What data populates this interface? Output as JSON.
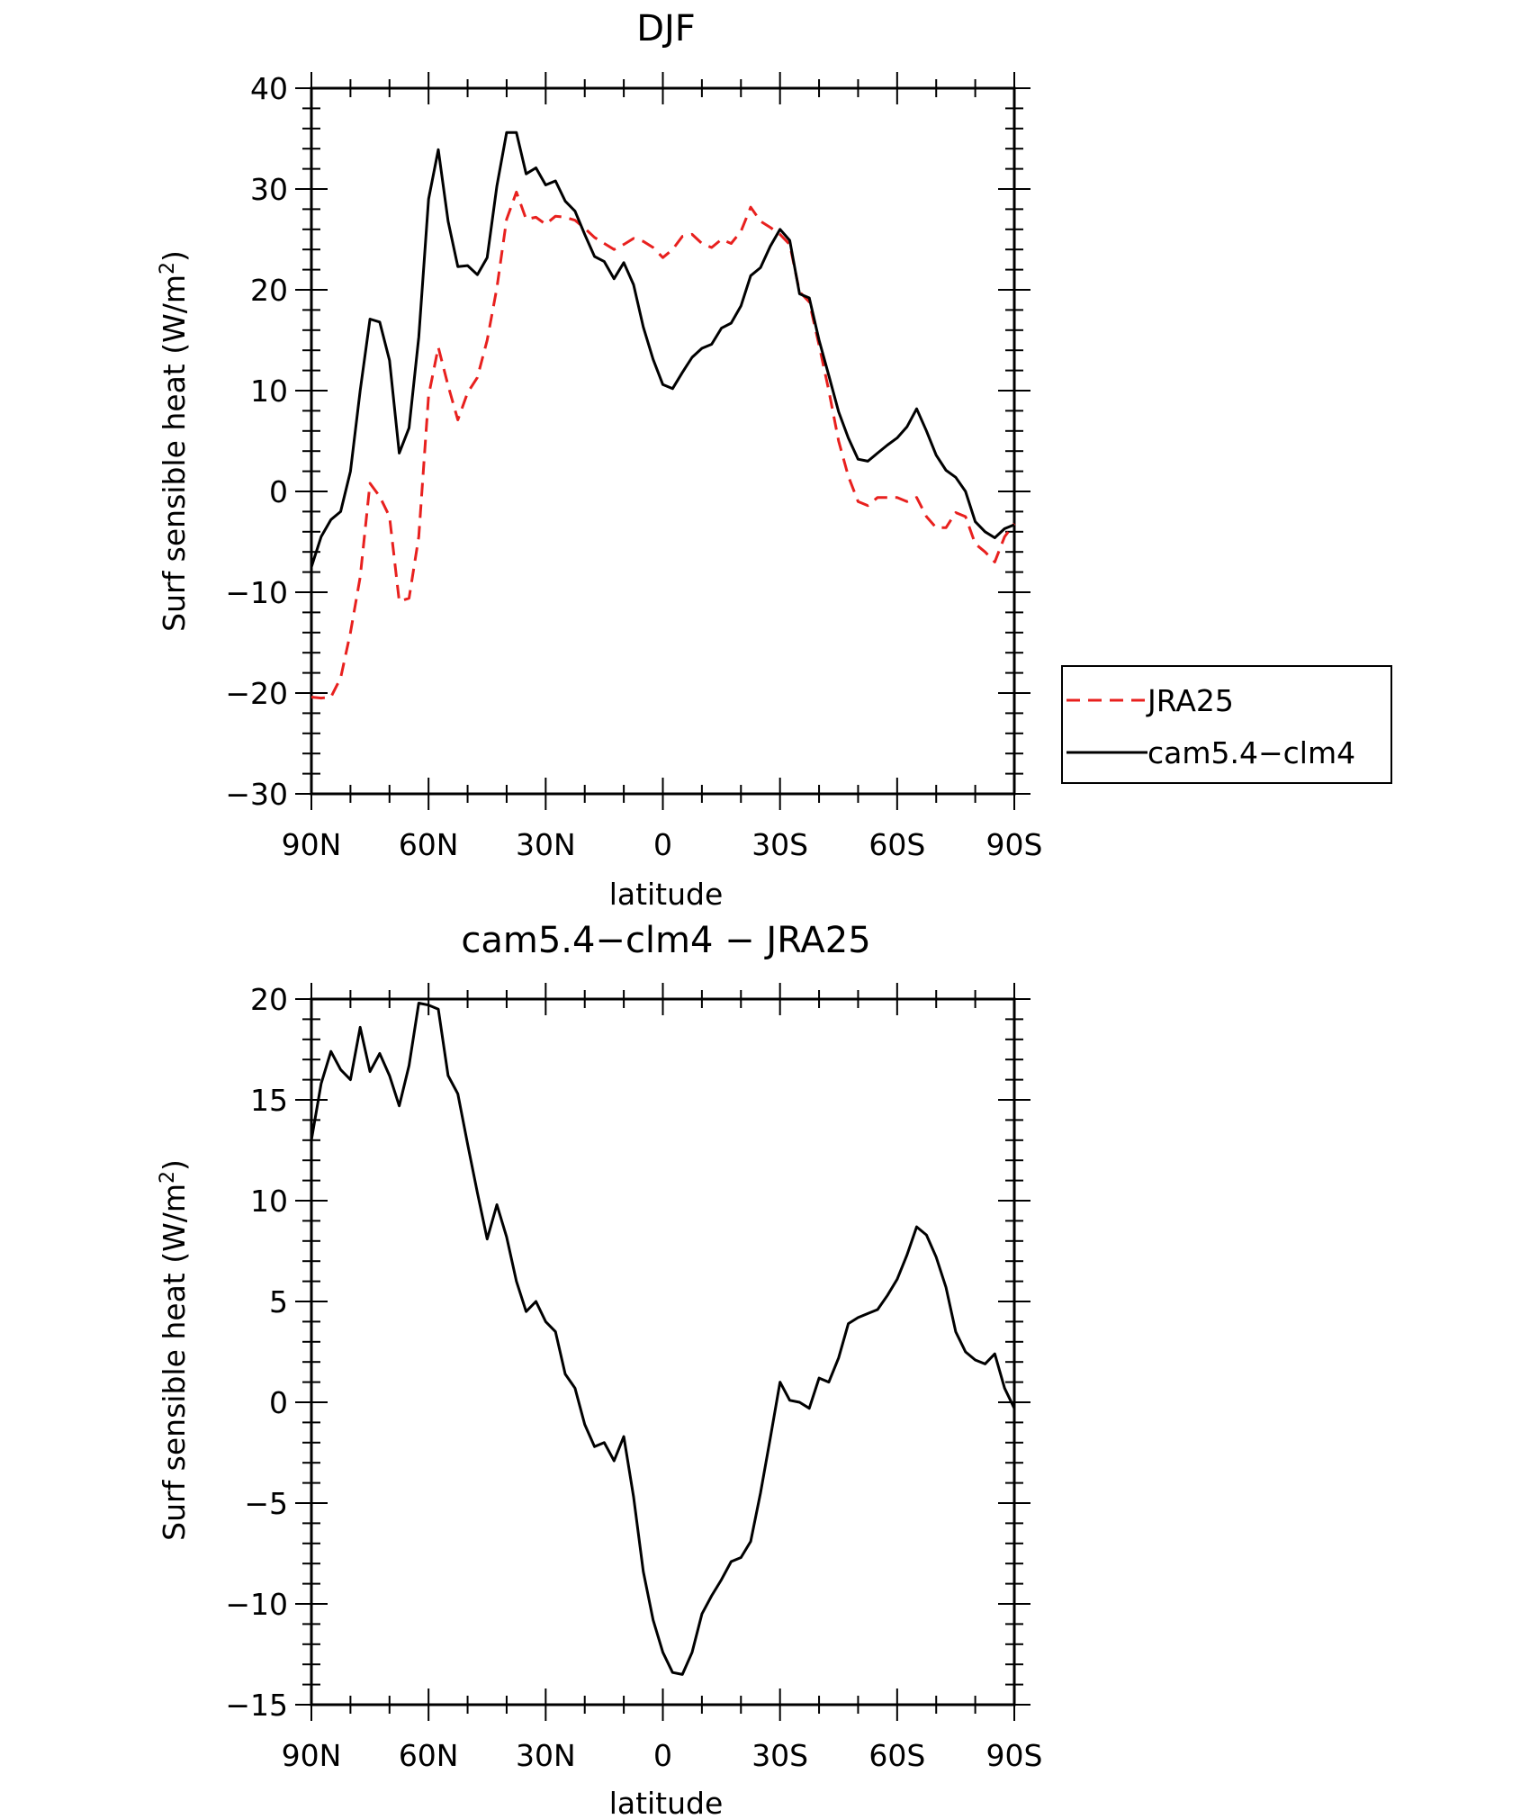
{
  "chart_data": [
    {
      "type": "line",
      "title": "DJF",
      "xlabel": "latitude",
      "ylabel": "Surf sensible heat (W/m",
      "ylabel_sup": "2",
      "ylabel_end": ")",
      "xlim": [
        90,
        -90
      ],
      "ylim": [
        -30,
        40
      ],
      "xticks": [
        90,
        60,
        30,
        0,
        -30,
        -60,
        -90
      ],
      "xtick_labels": [
        "90N",
        "60N",
        "30N",
        "0",
        "30S",
        "60S",
        "90S"
      ],
      "yticks": [
        40,
        30,
        20,
        10,
        0,
        -10,
        -20,
        -30
      ],
      "ytick_labels": [
        "40",
        "30",
        "20",
        "10",
        "0",
        "−10",
        "−20",
        "−30"
      ],
      "legend": "right",
      "x": [
        90,
        87.5,
        85,
        82.5,
        80,
        77.5,
        75,
        72.5,
        70,
        67.5,
        65,
        62.5,
        60,
        57.5,
        55,
        52.5,
        50,
        47.5,
        45,
        42.5,
        40,
        37.5,
        35,
        32.5,
        30,
        27.5,
        25,
        22.5,
        20,
        17.5,
        15,
        12.5,
        10,
        7.5,
        5,
        2.5,
        0,
        -2.5,
        -5,
        -7.5,
        -10,
        -12.5,
        -15,
        -17.5,
        -20,
        -22.5,
        -25,
        -27.5,
        -30,
        -32.5,
        -35,
        -37.5,
        -40,
        -42.5,
        -45,
        -47.5,
        -50,
        -52.5,
        -55,
        -57.5,
        -60,
        -62.5,
        -65,
        -67.5,
        -70,
        -72.5,
        -75,
        -77.5,
        -80,
        -82.5,
        -85,
        -87.5,
        -90
      ],
      "series": [
        {
          "name": "JRA25",
          "color": "#e8201e",
          "dash": "dashed",
          "values": [
            -20.4,
            -20.5,
            -20.4,
            -18.5,
            -14,
            -8.5,
            0.8,
            -0.5,
            -2.5,
            -10.9,
            -10.6,
            -4.5,
            9.5,
            14.3,
            10.5,
            7.1,
            9.8,
            11.3,
            15,
            20.2,
            27,
            29.7,
            27,
            27.2,
            26.5,
            27.3,
            27.2,
            26.9,
            26.1,
            25.2,
            24.6,
            24,
            24.5,
            25.1,
            24.8,
            24.2,
            23.2,
            24,
            25.3,
            25.5,
            24.6,
            24.2,
            25,
            24.6,
            25.8,
            28.2,
            26.8,
            26.2,
            25.5,
            24.5,
            19.8,
            18.8,
            14.5,
            10,
            5,
            1.5,
            -1,
            -1.4,
            -0.6,
            -0.6,
            -0.6,
            -1,
            -0.6,
            -2.5,
            -3.6,
            -3.6,
            -2.1,
            -2.5,
            -5.2,
            -6,
            -7,
            -4.5,
            -3.2
          ]
        },
        {
          "name": "cam5.4−clm4",
          "color": "#000000",
          "dash": "solid",
          "values": [
            -7.5,
            -4.5,
            -2.8,
            -2,
            2,
            10,
            17.1,
            16.8,
            13,
            3.8,
            6.3,
            15.3,
            29,
            33.9,
            26.8,
            22.3,
            22.4,
            21.5,
            23.2,
            30.3,
            35.6,
            35.6,
            31.5,
            32.1,
            30.4,
            30.8,
            28.8,
            27.8,
            25.5,
            23.3,
            22.8,
            21.1,
            22.7,
            20.5,
            16.3,
            13.1,
            10.6,
            10.2,
            11.8,
            13.3,
            14.2,
            14.6,
            16.2,
            16.7,
            18.4,
            21.4,
            22.2,
            24.3,
            26,
            24.9,
            19.6,
            19.2,
            15,
            11.5,
            7.9,
            5.3,
            3.2,
            3,
            3.8,
            4.6,
            5.3,
            6.4,
            8.2,
            6,
            3.6,
            2.1,
            1.4,
            0,
            -3,
            -4,
            -4.6,
            -3.7,
            -3.3
          ]
        }
      ]
    },
    {
      "type": "line",
      "title": "cam5.4−clm4 − JRA25",
      "xlabel": "latitude",
      "ylabel": "Surf sensible heat (W/m",
      "ylabel_sup": "2",
      "ylabel_end": ")",
      "xlim": [
        90,
        -90
      ],
      "ylim": [
        -15,
        20
      ],
      "xticks": [
        90,
        60,
        30,
        0,
        -30,
        -60,
        -90
      ],
      "xtick_labels": [
        "90N",
        "60N",
        "30N",
        "0",
        "30S",
        "60S",
        "90S"
      ],
      "yticks": [
        20,
        15,
        10,
        5,
        0,
        -5,
        -10,
        -15
      ],
      "ytick_labels": [
        "20",
        "15",
        "10",
        "5",
        "0",
        "−5",
        "−10",
        "−15"
      ],
      "x": [
        90,
        87.5,
        85,
        82.5,
        80,
        77.5,
        75,
        72.5,
        70,
        67.5,
        65,
        62.5,
        60,
        57.5,
        55,
        52.5,
        50,
        47.5,
        45,
        42.5,
        40,
        37.5,
        35,
        32.5,
        30,
        27.5,
        25,
        22.5,
        20,
        17.5,
        15,
        12.5,
        10,
        7.5,
        5,
        2.5,
        0,
        -2.5,
        -5,
        -7.5,
        -10,
        -12.5,
        -15,
        -17.5,
        -20,
        -22.5,
        -25,
        -27.5,
        -30,
        -32.5,
        -35,
        -37.5,
        -40,
        -42.5,
        -45,
        -47.5,
        -50,
        -52.5,
        -55,
        -57.5,
        -60,
        -62.5,
        -65,
        -67.5,
        -70,
        -72.5,
        -75,
        -77.5,
        -80,
        -82.5,
        -85,
        -87.5,
        -90
      ],
      "series": [
        {
          "color": "#000000",
          "dash": "solid",
          "values": [
            13,
            15.8,
            17.4,
            16.5,
            16,
            18.6,
            16.4,
            17.3,
            16.2,
            14.7,
            16.7,
            19.8,
            19.7,
            19.5,
            16.2,
            15.3,
            12.8,
            10.4,
            8.1,
            9.8,
            8.2,
            6,
            4.5,
            5,
            4,
            3.5,
            1.4,
            0.7,
            -1.1,
            -2.2,
            -2,
            -2.9,
            -1.7,
            -4.7,
            -8.4,
            -10.8,
            -12.4,
            -13.4,
            -13.5,
            -12.4,
            -10.5,
            -9.6,
            -8.8,
            -7.9,
            -7.7,
            -6.9,
            -4.5,
            -1.8,
            1,
            0.1,
            0,
            -0.3,
            1.2,
            1,
            2.2,
            3.9,
            4.2,
            4.4,
            4.6,
            5.3,
            6.1,
            7.3,
            8.7,
            8.3,
            7.2,
            5.7,
            3.5,
            2.5,
            2.1,
            1.9,
            2.4,
            0.7,
            -0.3
          ]
        }
      ]
    }
  ]
}
